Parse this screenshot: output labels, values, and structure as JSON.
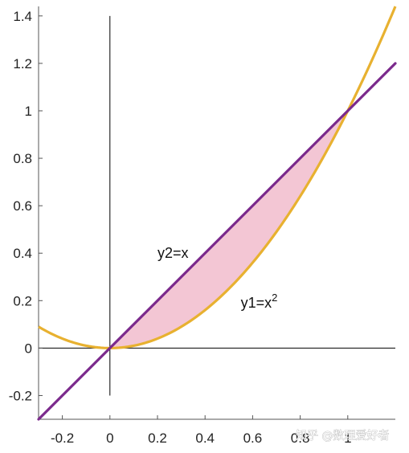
{
  "chart_data": {
    "type": "line",
    "x_ticks": [
      -0.2,
      0,
      0.2,
      0.4,
      0.6,
      0.8,
      1
    ],
    "x_tick_labels": [
      "-0.2",
      "0",
      "0.2",
      "0.4",
      "0.6",
      "0.8",
      "1"
    ],
    "y_ticks": [
      -0.2,
      0,
      0.2,
      0.4,
      0.6,
      0.8,
      1,
      1.2,
      1.4
    ],
    "y_tick_labels": [
      "-0.2",
      "0",
      "0.2",
      "0.4",
      "0.6",
      "0.8",
      "1",
      "1.2",
      "1.4"
    ],
    "xlim": [
      -0.3,
      1.2
    ],
    "ylim": [
      -0.3,
      1.44
    ],
    "grid": false,
    "series": [
      {
        "name": "y1=x2",
        "label_main": "y1=x",
        "label_sup": "2",
        "color": "#e8b130",
        "x": [
          -0.3,
          -0.2,
          -0.1,
          0,
          0.1,
          0.2,
          0.3,
          0.4,
          0.5,
          0.6,
          0.7,
          0.8,
          0.9,
          1.0,
          1.1,
          1.2
        ],
        "y": [
          0.09,
          0.04,
          0.01,
          0,
          0.01,
          0.04,
          0.09,
          0.16,
          0.25,
          0.36,
          0.49,
          0.64,
          0.81,
          1.0,
          1.21,
          1.44
        ]
      },
      {
        "name": "y2=x",
        "label_main": "y2=x",
        "color": "#7b2a8c",
        "x": [
          -0.3,
          1.2
        ],
        "y": [
          -0.3,
          1.2
        ]
      }
    ],
    "shaded_region": {
      "between": [
        "y2=x",
        "y1=x2"
      ],
      "x_range": [
        0,
        1
      ],
      "color": "#f3c6d4"
    },
    "reference_lines": {
      "x_zero": {
        "y_range": [
          -0.2,
          1.4
        ]
      },
      "y_zero": {
        "x_range": [
          -0.3,
          1.2
        ]
      }
    },
    "annotations": [
      {
        "text": "y2=x",
        "x": 0.2,
        "y": 0.38
      },
      {
        "text": "y1=x2",
        "x": 0.55,
        "y": 0.17
      }
    ]
  },
  "watermark": "知乎 @数理爱好者"
}
